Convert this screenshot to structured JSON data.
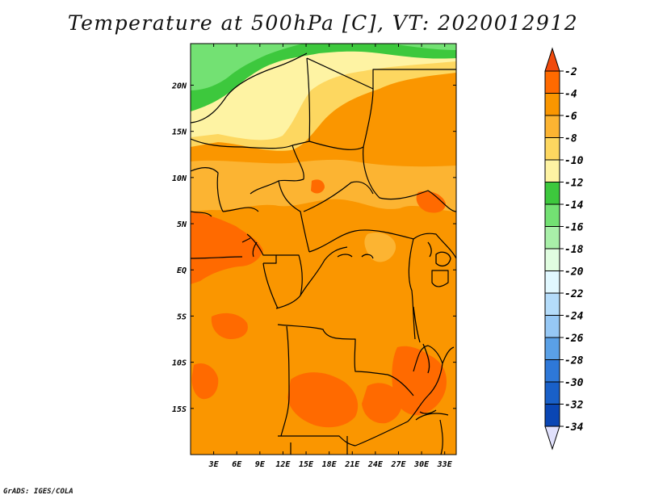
{
  "title": "Temperature at 500hPa [C], VT: 2020012912",
  "credit": "GrADS: IGES/COLA",
  "map": {
    "lon_range": [
      0,
      34.5
    ],
    "lat_range": [
      -20,
      24.5
    ],
    "lon_ticks": [
      {
        "value": 3,
        "label": "3E"
      },
      {
        "value": 6,
        "label": "6E"
      },
      {
        "value": 9,
        "label": "9E"
      },
      {
        "value": 12,
        "label": "12E"
      },
      {
        "value": 15,
        "label": "15E"
      },
      {
        "value": 18,
        "label": "18E"
      },
      {
        "value": 21,
        "label": "21E"
      },
      {
        "value": 24,
        "label": "24E"
      },
      {
        "value": 27,
        "label": "27E"
      },
      {
        "value": 30,
        "label": "30E"
      },
      {
        "value": 33,
        "label": "33E"
      }
    ],
    "lat_ticks": [
      {
        "value": 20,
        "label": "20N"
      },
      {
        "value": 15,
        "label": "15N"
      },
      {
        "value": 10,
        "label": "10N"
      },
      {
        "value": 5,
        "label": "5N"
      },
      {
        "value": 0,
        "label": "EQ"
      },
      {
        "value": -5,
        "label": "5S"
      },
      {
        "value": -10,
        "label": "10S"
      },
      {
        "value": -15,
        "label": "15S"
      }
    ]
  },
  "colorbar": {
    "levels": [
      {
        "label": "-2",
        "color": "#ff6a00"
      },
      {
        "label": "-4",
        "color": "#fa9600"
      },
      {
        "label": "-6",
        "color": "#fcb432"
      },
      {
        "label": "-8",
        "color": "#fdd760"
      },
      {
        "label": "-10",
        "color": "#fef3a3"
      },
      {
        "label": "-12",
        "color": "#3dc83d"
      },
      {
        "label": "-14",
        "color": "#73e173"
      },
      {
        "label": "-16",
        "color": "#a9f0a9"
      },
      {
        "label": "-18",
        "color": "#e0fde0"
      },
      {
        "label": "-20",
        "color": "#e1f8ff"
      },
      {
        "label": "-22",
        "color": "#b4dcfa"
      },
      {
        "label": "-24",
        "color": "#96c8f5"
      },
      {
        "label": "-26",
        "color": "#5aa0e6"
      },
      {
        "label": "-28",
        "color": "#2e78d8"
      },
      {
        "label": "-30",
        "color": "#1960c8"
      },
      {
        "label": "-32",
        "color": "#0a46b4"
      },
      {
        "label": "-34",
        "color": "#0b1478"
      }
    ],
    "top_color": "#f04a0c",
    "bottom_color": "#e1e1fc"
  }
}
